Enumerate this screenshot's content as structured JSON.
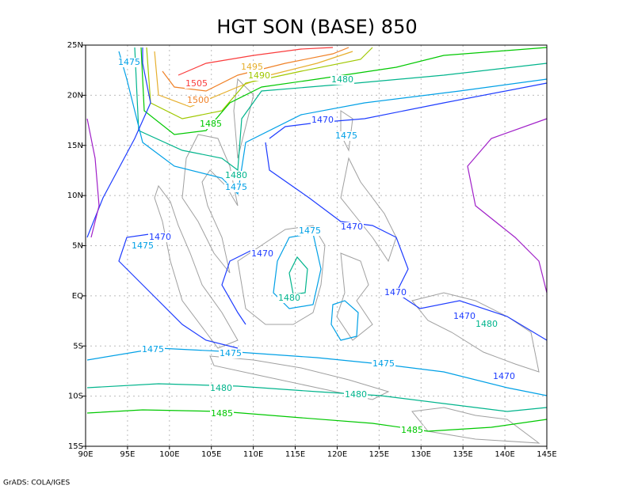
{
  "title": "HGT SON (BASE) 850",
  "x_tick_labels": [
    "90E",
    "95E",
    "100E",
    "105E",
    "110E",
    "115E",
    "120E",
    "125E",
    "130E",
    "135E",
    "140E",
    "145E"
  ],
  "y_tick_labels": [
    "25N",
    "20N",
    "15N",
    "10N",
    "5N",
    "EQ",
    "5S",
    "10S",
    "15S"
  ],
  "levels": [
    {
      "value": 1470,
      "color": "#1e3cff"
    },
    {
      "value": 1475,
      "color": "#00a0e6"
    },
    {
      "value": 1480,
      "color": "#00b48c"
    },
    {
      "value": 1485,
      "color": "#00c800"
    },
    {
      "value": 1490,
      "color": "#a0c800"
    },
    {
      "value": 1495,
      "color": "#e6af2d"
    },
    {
      "value": 1500,
      "color": "#f08228"
    },
    {
      "value": 1505,
      "color": "#fa3c3c"
    }
  ],
  "contour_labels": [
    1475,
    1495,
    1490,
    1505,
    1500,
    1480,
    1485,
    1470,
    1475,
    1480,
    1475,
    1470,
    1475,
    1470,
    1475,
    1470,
    1480,
    1470,
    1470,
    1480,
    1475,
    1475,
    1475,
    1470,
    1480,
    1480,
    1485,
    1485
  ],
  "footer": "GrADS: COLA/IGES"
}
